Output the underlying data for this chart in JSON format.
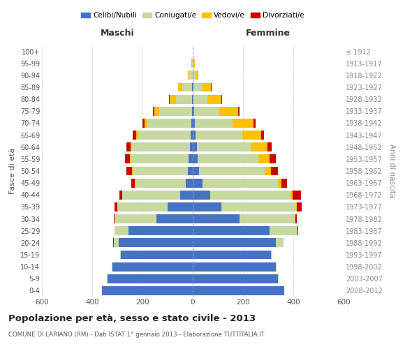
{
  "age_groups": [
    "0-4",
    "5-9",
    "10-14",
    "15-19",
    "20-24",
    "25-29",
    "30-34",
    "35-39",
    "40-44",
    "45-49",
    "50-54",
    "55-59",
    "60-64",
    "65-69",
    "70-74",
    "75-79",
    "80-84",
    "85-89",
    "90-94",
    "95-99",
    "100+"
  ],
  "birth_years": [
    "2008-2012",
    "2003-2007",
    "1998-2002",
    "1993-1997",
    "1988-1992",
    "1983-1987",
    "1978-1982",
    "1973-1977",
    "1968-1972",
    "1963-1967",
    "1958-1962",
    "1953-1957",
    "1948-1952",
    "1943-1947",
    "1938-1942",
    "1933-1937",
    "1928-1932",
    "1923-1927",
    "1918-1922",
    "1913-1917",
    "≤ 1912"
  ],
  "males": {
    "celibi": [
      360,
      340,
      320,
      285,
      295,
      255,
      145,
      100,
      50,
      28,
      20,
      16,
      12,
      8,
      6,
      4,
      3,
      2,
      1,
      1,
      0
    ],
    "coniugati": [
      0,
      1,
      2,
      5,
      20,
      55,
      165,
      200,
      230,
      200,
      220,
      230,
      230,
      210,
      175,
      130,
      65,
      40,
      15,
      3,
      1
    ],
    "vedovi": [
      0,
      0,
      0,
      0,
      0,
      0,
      0,
      1,
      1,
      2,
      3,
      5,
      6,
      8,
      12,
      18,
      25,
      15,
      3,
      1,
      0
    ],
    "divorziati": [
      0,
      0,
      0,
      0,
      1,
      2,
      5,
      10,
      12,
      15,
      20,
      18,
      15,
      12,
      8,
      5,
      2,
      1,
      1,
      0,
      0
    ]
  },
  "females": {
    "nubili": [
      365,
      340,
      330,
      310,
      330,
      305,
      185,
      115,
      70,
      40,
      26,
      20,
      16,
      12,
      8,
      5,
      4,
      3,
      1,
      1,
      0
    ],
    "coniugate": [
      0,
      1,
      2,
      8,
      30,
      110,
      220,
      295,
      320,
      300,
      260,
      240,
      215,
      185,
      150,
      100,
      55,
      35,
      12,
      4,
      1
    ],
    "vedove": [
      0,
      0,
      0,
      0,
      0,
      1,
      2,
      3,
      6,
      12,
      25,
      45,
      65,
      75,
      85,
      75,
      55,
      35,
      8,
      2,
      0
    ],
    "divorziate": [
      0,
      0,
      0,
      0,
      1,
      3,
      8,
      20,
      35,
      22,
      28,
      25,
      18,
      12,
      8,
      5,
      2,
      1,
      1,
      0,
      0
    ]
  },
  "color_celibi": "#4472c4",
  "color_coniugati": "#c5d9a0",
  "color_vedovi": "#ffc000",
  "color_divorziati": "#cc0000",
  "title": "Popolazione per età, sesso e stato civile - 2013",
  "subtitle": "COMUNE DI LARIANO (RM) - Dati ISTAT 1° gennaio 2013 - Elaborazione TUTTITALIA.IT",
  "ylabel_left": "Fasce di età",
  "ylabel_right": "Anni di nascita",
  "xlim": 600,
  "bg_color": "#ffffff",
  "grid_color": "#cccccc",
  "bar_height": 0.75
}
